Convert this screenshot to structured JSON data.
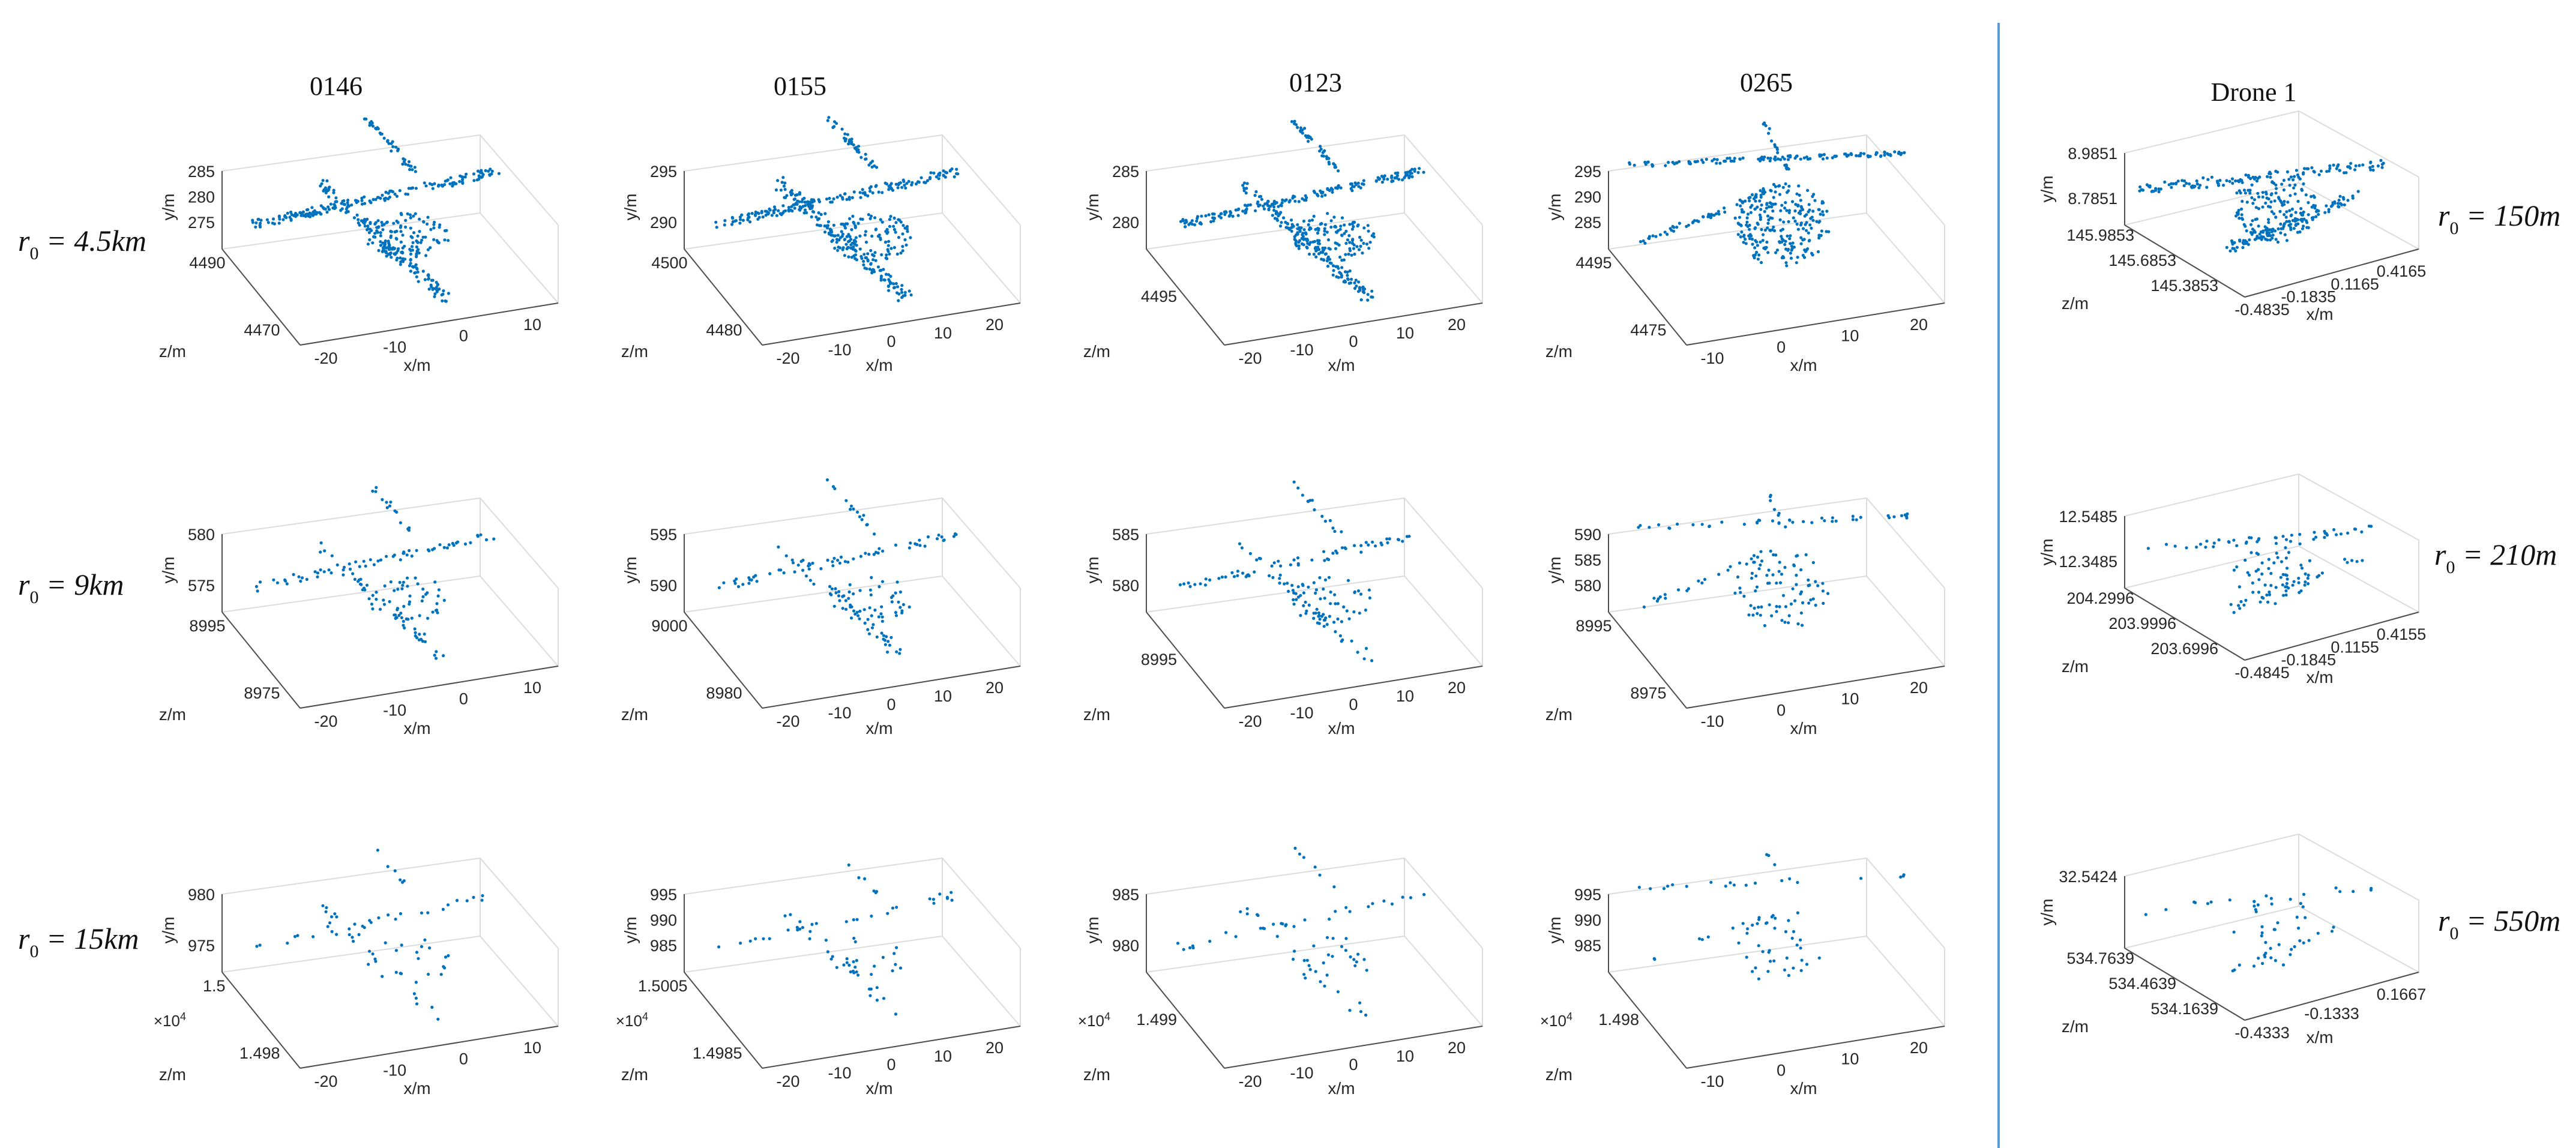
{
  "column_titles": [
    "0146",
    "0155",
    "0123",
    "0265",
    "Drone 1"
  ],
  "row_labels": [
    {
      "prefix": "r",
      "sub": "0",
      "value": " = 4.5km"
    },
    {
      "prefix": "r",
      "sub": "0",
      "value": " = 9km"
    },
    {
      "prefix": "r",
      "sub": "0",
      "value": " = 15km"
    }
  ],
  "drone_row_labels": [
    {
      "prefix": "r",
      "sub": "0",
      "value": " = 150m"
    },
    {
      "prefix": "r",
      "sub": "0",
      "value": " = 210m"
    },
    {
      "prefix": "r",
      "sub": "0",
      "value": " = 550m"
    }
  ],
  "colors": {
    "points": "#0072BD",
    "divider": "#5b9bd5"
  },
  "chart_data": [
    {
      "type": "scatter",
      "id": "0146-r1",
      "xlabel": "x/m",
      "ylabel": "y/m",
      "zlabel": "z/m",
      "x_ticks": [
        "-20",
        "-10",
        "0",
        "10"
      ],
      "y_ticks": [
        "285",
        "280",
        "275"
      ],
      "z_ticks": [
        "4490",
        "4470"
      ],
      "multiplier": "",
      "points": {
        "shape": "aircraft",
        "density": "dense"
      }
    },
    {
      "type": "scatter",
      "id": "0155-r1",
      "xlabel": "x/m",
      "ylabel": "y/m",
      "zlabel": "z/m",
      "x_ticks": [
        "-20",
        "-10",
        "0",
        "10",
        "20"
      ],
      "y_ticks": [
        "295",
        "290"
      ],
      "z_ticks": [
        "4500",
        "4480"
      ],
      "multiplier": "",
      "points": {
        "shape": "aircraft",
        "density": "dense"
      }
    },
    {
      "type": "scatter",
      "id": "0123-r1",
      "xlabel": "x/m",
      "ylabel": "y/m",
      "zlabel": "z/m",
      "x_ticks": [
        "-20",
        "-10",
        "0",
        "10",
        "20"
      ],
      "y_ticks": [
        "285",
        "280"
      ],
      "z_ticks": [
        "4495"
      ],
      "multiplier": "",
      "points": {
        "shape": "aircraft",
        "density": "dense"
      }
    },
    {
      "type": "scatter",
      "id": "0265-r1",
      "xlabel": "x/m",
      "ylabel": "y/m",
      "zlabel": "z/m",
      "x_ticks": [
        "-10",
        "0",
        "10",
        "20"
      ],
      "y_ticks": [
        "295",
        "290",
        "285"
      ],
      "z_ticks": [
        "4495",
        "4475"
      ],
      "multiplier": "",
      "points": {
        "shape": "helicopter",
        "density": "dense"
      }
    },
    {
      "type": "scatter",
      "id": "drone-r1",
      "xlabel": "x/m",
      "ylabel": "y/m",
      "zlabel": "z/m",
      "x_ticks": [
        "-0.4835",
        "-0.1835",
        "0.1165",
        "0.4165"
      ],
      "y_ticks": [
        "8.9851",
        "8.7851"
      ],
      "z_ticks": [
        "145.9853",
        "145.6853",
        "145.3853"
      ],
      "multiplier": "",
      "points": {
        "shape": "drone",
        "density": "dense"
      }
    },
    {
      "type": "scatter",
      "id": "0146-r2",
      "xlabel": "x/m",
      "ylabel": "y/m",
      "zlabel": "z/m",
      "x_ticks": [
        "-20",
        "-10",
        "0",
        "10"
      ],
      "y_ticks": [
        "580",
        "575"
      ],
      "z_ticks": [
        "8995",
        "8975"
      ],
      "multiplier": "",
      "points": {
        "shape": "aircraft",
        "density": "medium"
      }
    },
    {
      "type": "scatter",
      "id": "0155-r2",
      "xlabel": "x/m",
      "ylabel": "y/m",
      "zlabel": "z/m",
      "x_ticks": [
        "-20",
        "-10",
        "0",
        "10",
        "20"
      ],
      "y_ticks": [
        "595",
        "590"
      ],
      "z_ticks": [
        "9000",
        "8980"
      ],
      "multiplier": "",
      "points": {
        "shape": "aircraft",
        "density": "medium"
      }
    },
    {
      "type": "scatter",
      "id": "0123-r2",
      "xlabel": "x/m",
      "ylabel": "y/m",
      "zlabel": "z/m",
      "x_ticks": [
        "-20",
        "-10",
        "0",
        "10",
        "20"
      ],
      "y_ticks": [
        "585",
        "580"
      ],
      "z_ticks": [
        "8995"
      ],
      "multiplier": "",
      "points": {
        "shape": "aircraft",
        "density": "medium"
      }
    },
    {
      "type": "scatter",
      "id": "0265-r2",
      "xlabel": "x/m",
      "ylabel": "y/m",
      "zlabel": "z/m",
      "x_ticks": [
        "-10",
        "0",
        "10",
        "20"
      ],
      "y_ticks": [
        "590",
        "585",
        "580"
      ],
      "z_ticks": [
        "8995",
        "8975"
      ],
      "multiplier": "",
      "points": {
        "shape": "helicopter",
        "density": "medium"
      }
    },
    {
      "type": "scatter",
      "id": "drone-r2",
      "xlabel": "x/m",
      "ylabel": "y/m",
      "zlabel": "z/m",
      "x_ticks": [
        "-0.4845",
        "-0.1845",
        "0.1155",
        "0.4155"
      ],
      "y_ticks": [
        "12.5485",
        "12.3485"
      ],
      "z_ticks": [
        "204.2996",
        "203.9996",
        "203.6996"
      ],
      "multiplier": "",
      "points": {
        "shape": "drone",
        "density": "medium"
      }
    },
    {
      "type": "scatter",
      "id": "0146-r3",
      "xlabel": "x/m",
      "ylabel": "y/m",
      "zlabel": "z/m",
      "x_ticks": [
        "-20",
        "-10",
        "0",
        "10"
      ],
      "y_ticks": [
        "980",
        "975"
      ],
      "z_ticks": [
        "1.5",
        "1.498"
      ],
      "multiplier": "×10^4",
      "points": {
        "shape": "aircraft",
        "density": "sparse"
      }
    },
    {
      "type": "scatter",
      "id": "0155-r3",
      "xlabel": "x/m",
      "ylabel": "y/m",
      "zlabel": "z/m",
      "x_ticks": [
        "-20",
        "-10",
        "0",
        "10",
        "20"
      ],
      "y_ticks": [
        "995",
        "990",
        "985"
      ],
      "z_ticks": [
        "1.5005",
        "1.4985"
      ],
      "multiplier": "×10^4",
      "points": {
        "shape": "aircraft",
        "density": "sparse"
      }
    },
    {
      "type": "scatter",
      "id": "0123-r3",
      "xlabel": "x/m",
      "ylabel": "y/m",
      "zlabel": "z/m",
      "x_ticks": [
        "-20",
        "-10",
        "0",
        "10",
        "20"
      ],
      "y_ticks": [
        "985",
        "980"
      ],
      "z_ticks": [
        "1.499"
      ],
      "multiplier": "×10^4",
      "points": {
        "shape": "aircraft",
        "density": "sparse"
      }
    },
    {
      "type": "scatter",
      "id": "0265-r3",
      "xlabel": "x/m",
      "ylabel": "y/m",
      "zlabel": "z/m",
      "x_ticks": [
        "-10",
        "0",
        "10",
        "20"
      ],
      "y_ticks": [
        "995",
        "990",
        "985"
      ],
      "z_ticks": [
        "1.498"
      ],
      "multiplier": "×10^4",
      "points": {
        "shape": "helicopter",
        "density": "sparse"
      }
    },
    {
      "type": "scatter",
      "id": "drone-r3",
      "xlabel": "x/m",
      "ylabel": "y/m",
      "zlabel": "z/m",
      "x_ticks": [
        "-0.4333",
        "-0.1333",
        "0.1667"
      ],
      "y_ticks": [
        "32.5424"
      ],
      "z_ticks": [
        "534.7639",
        "534.4639",
        "534.1639"
      ],
      "multiplier": "",
      "points": {
        "shape": "drone",
        "density": "sparse"
      }
    }
  ]
}
